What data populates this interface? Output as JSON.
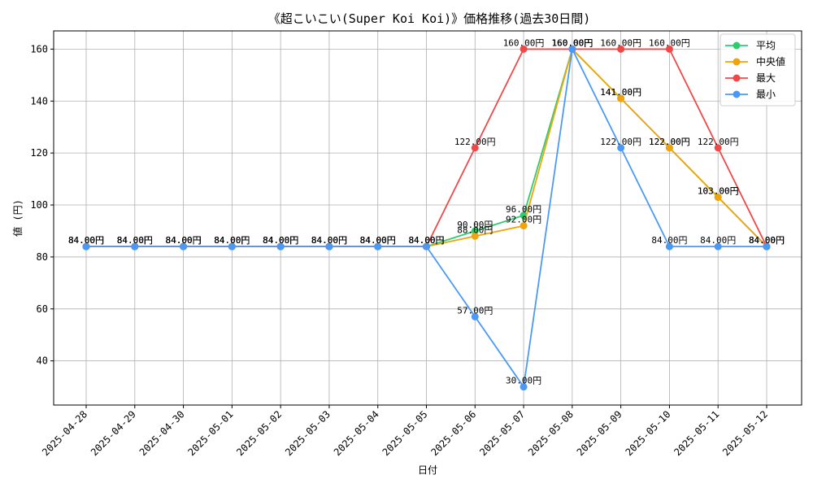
{
  "chart_data": {
    "type": "line",
    "title": "《超こいこい(Super Koi Koi)》価格推移(過去30日間)",
    "xlabel": "日付",
    "ylabel": "値 (円)",
    "categories": [
      "2025-04-28",
      "2025-04-29",
      "2025-04-30",
      "2025-05-01",
      "2025-05-02",
      "2025-05-03",
      "2025-05-04",
      "2025-05-05",
      "2025-05-06",
      "2025-05-07",
      "2025-05-08",
      "2025-05-09",
      "2025-05-10",
      "2025-05-11",
      "2025-05-12"
    ],
    "ylim": [
      23,
      167
    ],
    "yticks": [
      40,
      60,
      80,
      100,
      120,
      140,
      160
    ],
    "grid": true,
    "legend_position": "top-right",
    "label_suffix": "円",
    "series": [
      {
        "name": "平均",
        "color": "#2ecc71",
        "values": [
          84,
          84,
          84,
          84,
          84,
          84,
          84,
          84,
          90,
          96,
          160,
          141,
          122,
          103,
          84
        ]
      },
      {
        "name": "中央値",
        "color": "#f0a30a",
        "values": [
          84,
          84,
          84,
          84,
          84,
          84,
          84,
          84,
          88,
          92,
          160,
          141,
          122,
          103,
          84
        ]
      },
      {
        "name": "最大",
        "color": "#f04848",
        "values": [
          84,
          84,
          84,
          84,
          84,
          84,
          84,
          84,
          122,
          160,
          160,
          160,
          160,
          122,
          84
        ]
      },
      {
        "name": "最小",
        "color": "#4a9af5",
        "values": [
          84,
          84,
          84,
          84,
          84,
          84,
          84,
          84,
          57,
          30,
          160,
          122,
          84,
          84,
          84
        ]
      }
    ]
  }
}
